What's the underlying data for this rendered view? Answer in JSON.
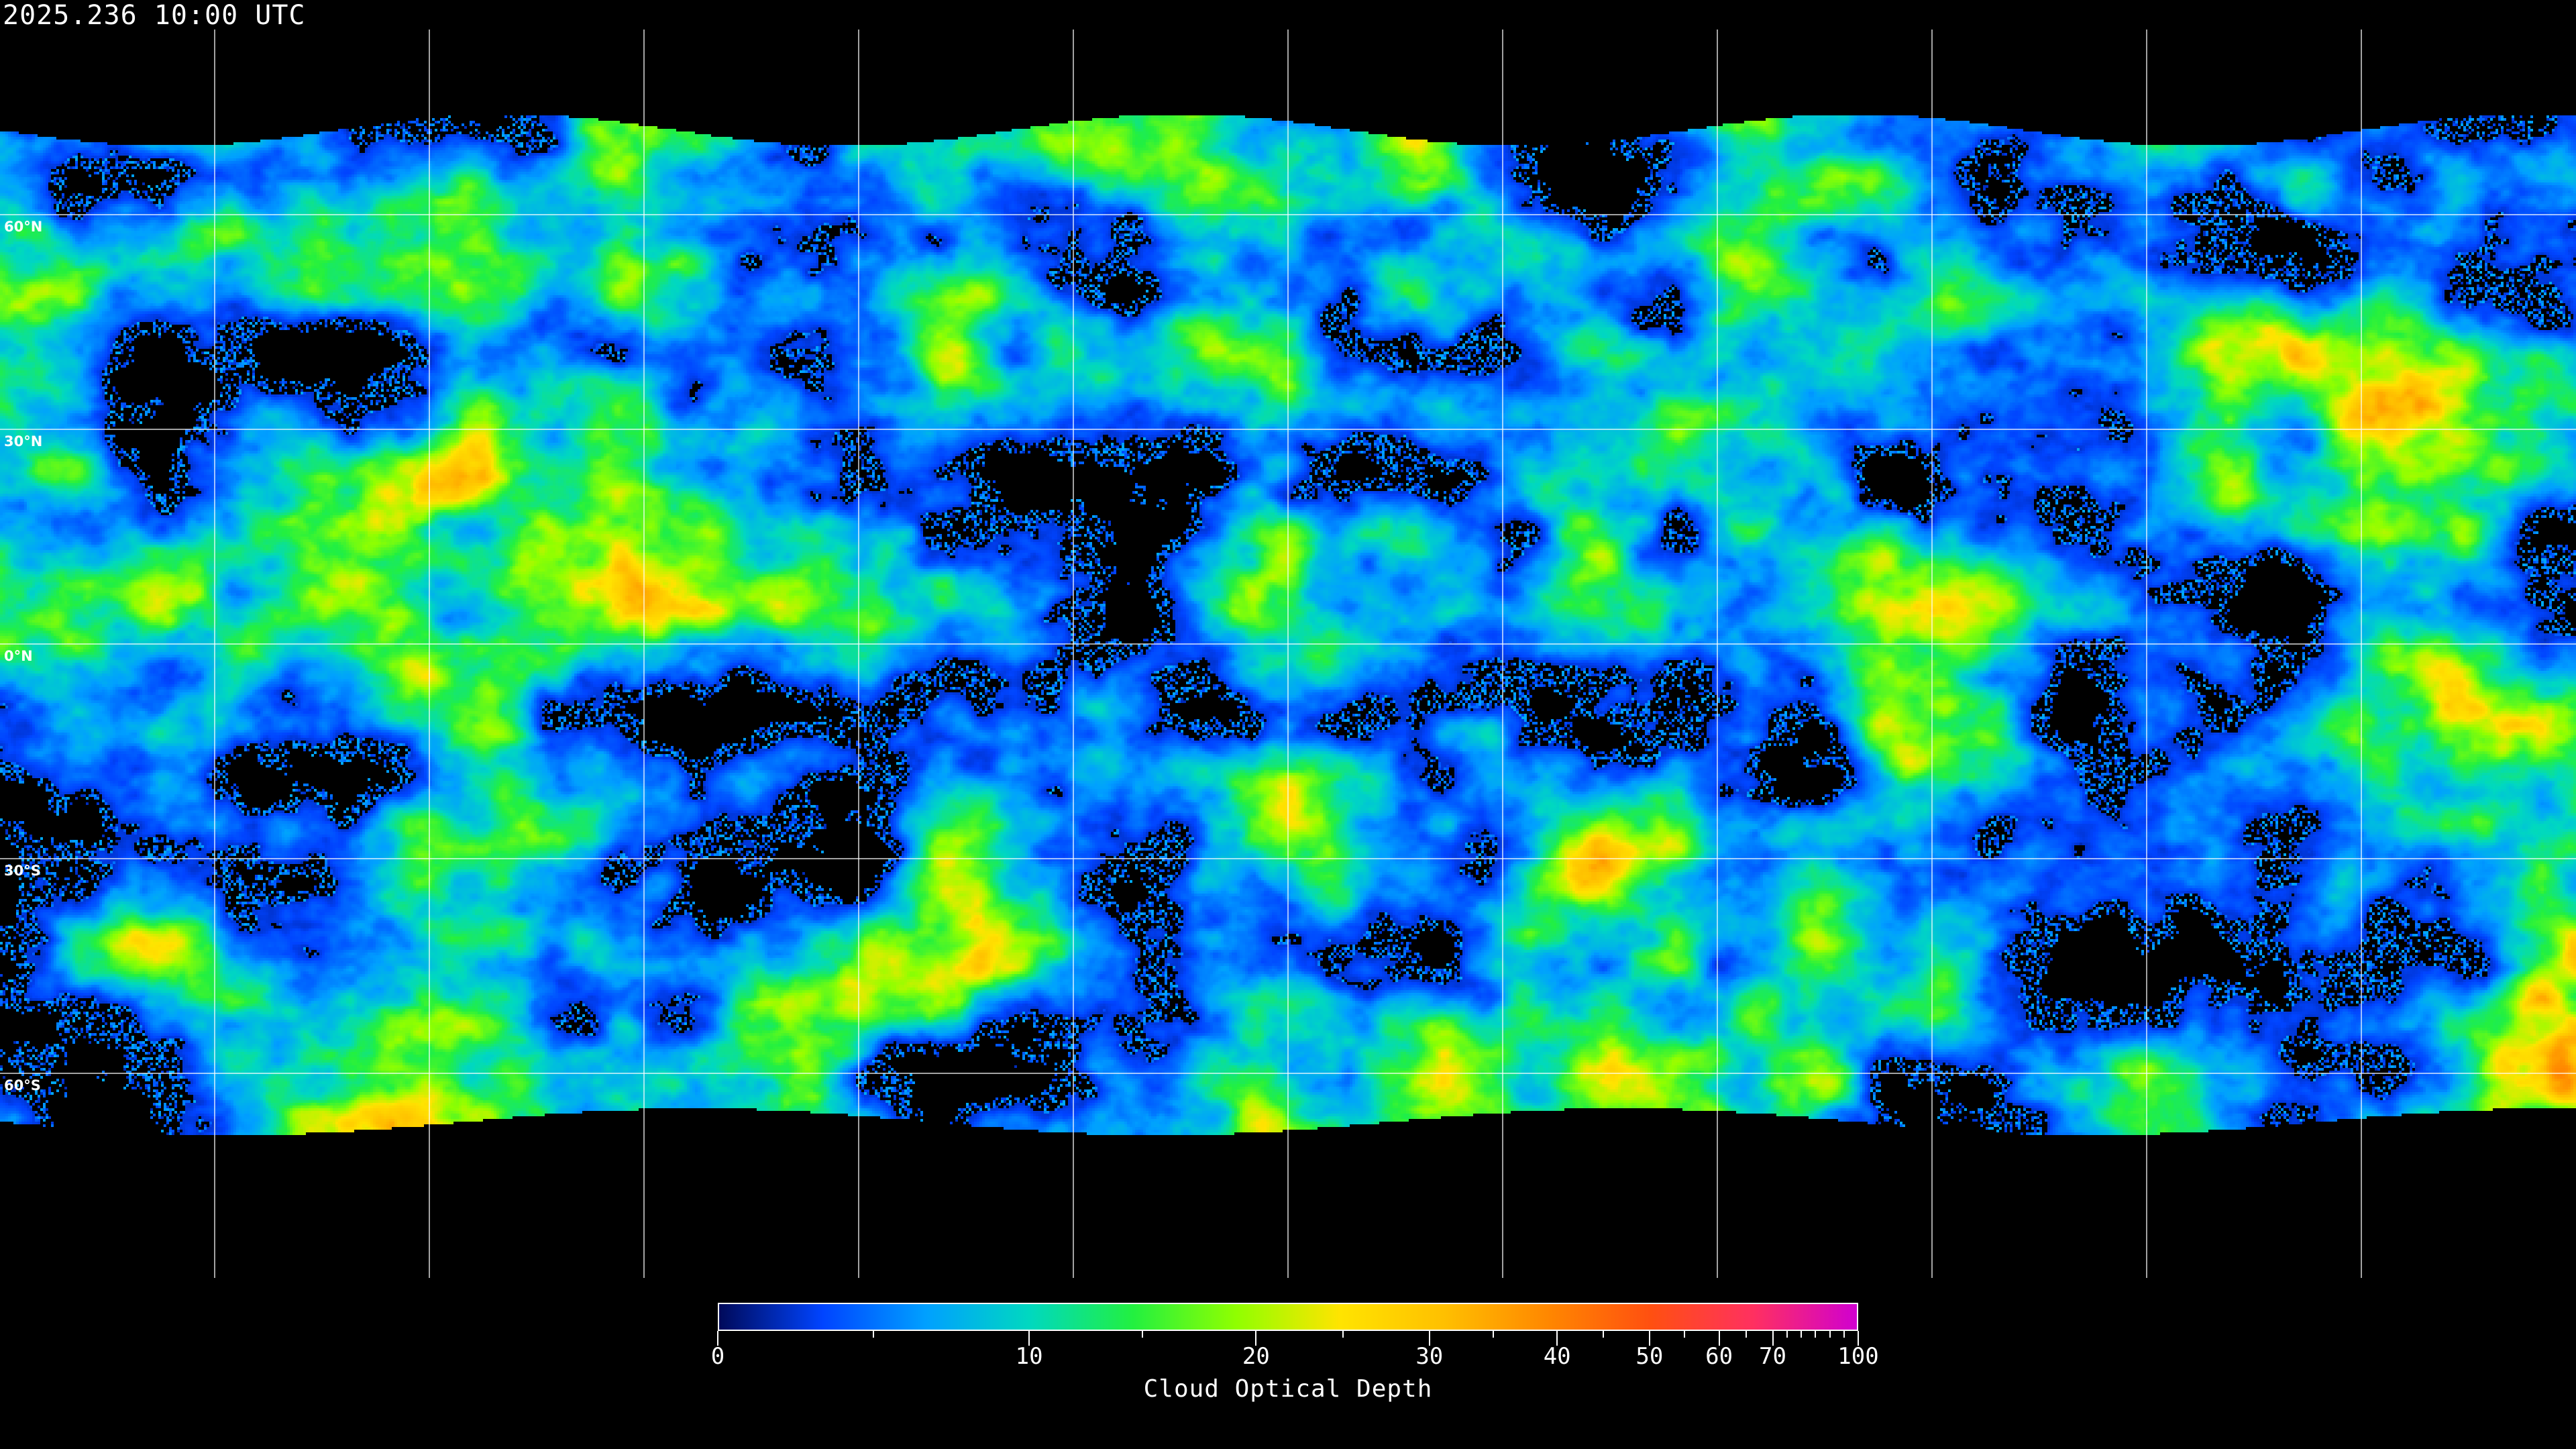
{
  "title": "2025.236 10:00 UTC",
  "map": {
    "projection": "equirectangular",
    "grid_spacing_degrees": 30,
    "gridline_color": "#ffffff",
    "background_color": "#000000",
    "coastline_color": "#ffffff",
    "latitude_labels": [
      {
        "lat": 60,
        "label": "60°N"
      },
      {
        "lat": 30,
        "label": "30°N"
      },
      {
        "lat": 0,
        "label": "0°N"
      },
      {
        "lat": -30,
        "label": "30°S"
      },
      {
        "lat": -60,
        "label": "60°S"
      }
    ]
  },
  "colorbar": {
    "label": "Cloud Optical Depth",
    "range": [
      0,
      100
    ],
    "major_ticks": [
      {
        "value": 0,
        "label": "0"
      },
      {
        "value": 10,
        "label": "10"
      },
      {
        "value": 20,
        "label": "20"
      },
      {
        "value": 30,
        "label": "30"
      },
      {
        "value": 40,
        "label": "40"
      },
      {
        "value": 50,
        "label": "50"
      },
      {
        "value": 60,
        "label": "60"
      },
      {
        "value": 70,
        "label": "70"
      },
      {
        "value": 100,
        "label": "100"
      }
    ],
    "minor_ticks": [
      5,
      15,
      25,
      35,
      45,
      55,
      65,
      75,
      80,
      85,
      90,
      95
    ],
    "colors": [
      "#000a5a",
      "#0044ff",
      "#00a0ff",
      "#00d8c0",
      "#22f040",
      "#90ff00",
      "#ffe400",
      "#ffc000",
      "#ff8800",
      "#ff5010",
      "#ff3060",
      "#d000d0"
    ]
  }
}
